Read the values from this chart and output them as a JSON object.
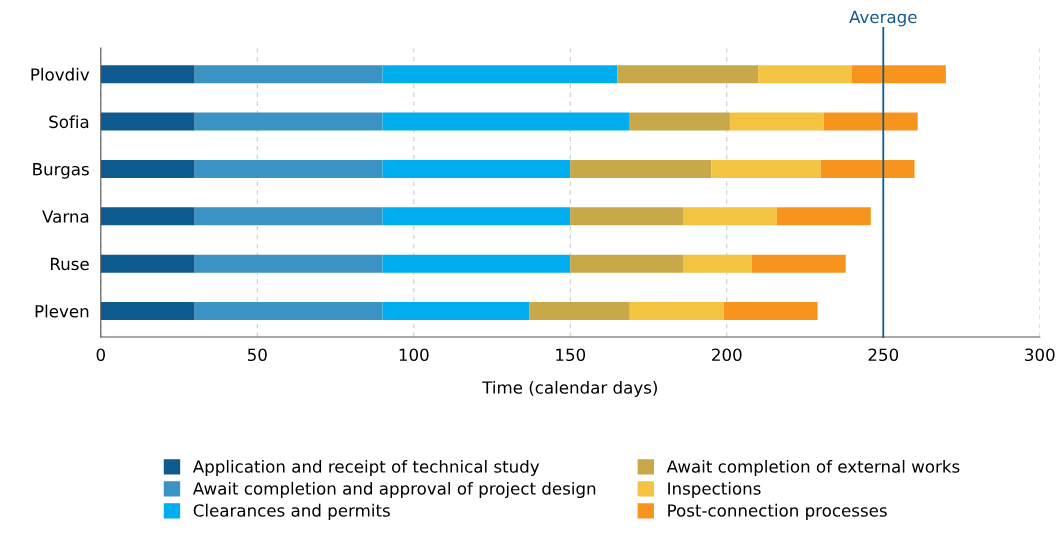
{
  "chart_data": {
    "type": "bar",
    "orientation": "horizontal",
    "stacked": true,
    "xlabel": "Time (calendar days)",
    "categories": [
      "Plovdiv",
      "Sofia",
      "Burgas",
      "Varna",
      "Ruse",
      "Pleven"
    ],
    "series": [
      {
        "name": "Application and receipt of technical study",
        "color": "#0f5a8f",
        "values": [
          30,
          30,
          30,
          30,
          30,
          30
        ]
      },
      {
        "name": "Await completion and approval of project design",
        "color": "#3a93c3",
        "values": [
          60,
          60,
          60,
          60,
          60,
          60
        ]
      },
      {
        "name": "Clearances and permits",
        "color": "#00aeef",
        "values": [
          75,
          79,
          60,
          60,
          60,
          47
        ]
      },
      {
        "name": "Await completion of external works",
        "color": "#c9a84a",
        "values": [
          45,
          32,
          45,
          36,
          36,
          32
        ]
      },
      {
        "name": "Inspections",
        "color": "#f5c342",
        "values": [
          30,
          30,
          35,
          30,
          22,
          30
        ]
      },
      {
        "name": "Post-connection processes",
        "color": "#f7941d",
        "values": [
          30,
          30,
          30,
          30,
          30,
          30
        ]
      }
    ],
    "xlim": [
      0,
      300
    ],
    "xticks": [
      0,
      50,
      100,
      150,
      200,
      250,
      300
    ],
    "ref_lines": [
      {
        "axis": "x",
        "value": 250,
        "label": "Average",
        "color": "#1a5a8a"
      }
    ],
    "grid": "x",
    "legend": "bottom"
  }
}
